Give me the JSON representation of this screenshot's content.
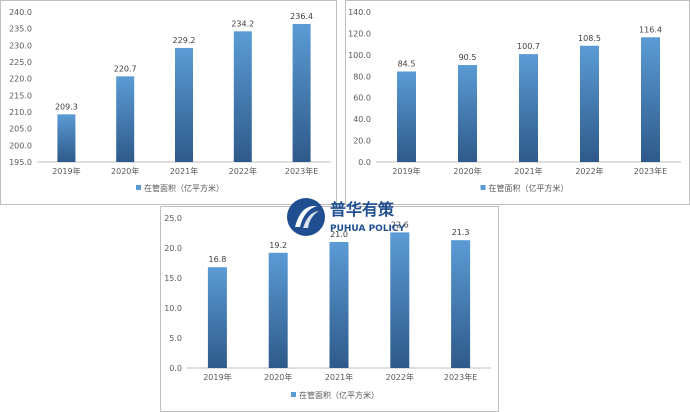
{
  "chart_data": [
    {
      "type": "bar",
      "categories": [
        "2019年",
        "2020年",
        "2021年",
        "2022年",
        "2023年E"
      ],
      "series": [
        {
          "name": "在管面积（亿平方米）",
          "values": [
            209.3,
            220.7,
            229.2,
            234.2,
            236.4
          ]
        }
      ],
      "data_labels": [
        "209.3",
        "220.7",
        "229.2",
        "234.2",
        "236.4"
      ],
      "ylim": [
        195.0,
        240.0
      ],
      "yticks": [
        "195.0",
        "200.0",
        "205.0",
        "210.0",
        "215.0",
        "220.0",
        "225.0",
        "230.0",
        "235.0",
        "240.0"
      ],
      "legend_position": "bottom",
      "grid": false
    },
    {
      "type": "bar",
      "categories": [
        "2019年",
        "2020年",
        "2021年",
        "2022年",
        "2023年E"
      ],
      "series": [
        {
          "name": "在管面积（亿平方米）",
          "values": [
            84.5,
            90.5,
            100.7,
            108.5,
            116.4
          ]
        }
      ],
      "data_labels": [
        "84.5",
        "90.5",
        "100.7",
        "108.5",
        "116.4"
      ],
      "ylim": [
        0.0,
        140.0
      ],
      "yticks": [
        "0.0",
        "20.0",
        "40.0",
        "60.0",
        "80.0",
        "100.0",
        "120.0",
        "140.0"
      ],
      "legend_position": "bottom",
      "grid": false
    },
    {
      "type": "bar",
      "categories": [
        "2019年",
        "2020年",
        "2021年",
        "2022年",
        "2023年E"
      ],
      "series": [
        {
          "name": "在管面积（亿平方米）",
          "values": [
            16.8,
            19.2,
            21.0,
            22.6,
            21.3
          ]
        }
      ],
      "data_labels": [
        "16.8",
        "19.2",
        "21.0",
        "22.6",
        "21.3"
      ],
      "ylim": [
        0.0,
        25.0
      ],
      "yticks": [
        "0.0",
        "5.0",
        "10.0",
        "15.0",
        "20.0",
        "25.0"
      ],
      "legend_position": "bottom",
      "grid": false
    }
  ],
  "colors": {
    "bar_top": "#5b9bd5",
    "bar_bottom": "#2e5a8a",
    "axis": "#bfbfbf",
    "logo_blue": "#1f4e91"
  },
  "watermark": {
    "title": "普华有策",
    "subtitle": "PUHUA POLICY"
  }
}
